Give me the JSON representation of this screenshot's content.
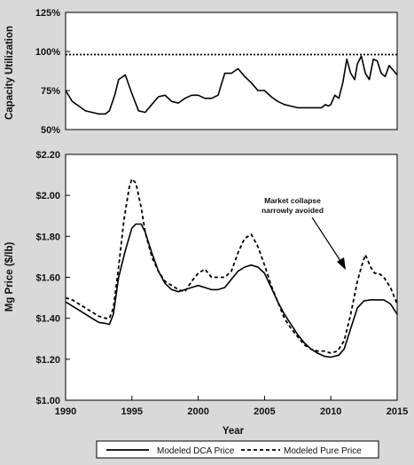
{
  "chart_data": [
    {
      "type": "line",
      "ylabel": "Capacity Utilization",
      "xlim": [
        1990,
        2015
      ],
      "ylim": [
        50,
        125
      ],
      "yticks": [
        "50%",
        "75%",
        "100%",
        "125%"
      ],
      "ytick_values": [
        50,
        75,
        100,
        125
      ],
      "grid": false,
      "series": [
        {
          "line": "solid",
          "x": [
            1990,
            1990.5,
            1991,
            1991.5,
            1992,
            1992.5,
            1993,
            1993.3,
            1993.7,
            1994,
            1994.5,
            1995,
            1995.5,
            1996,
            1996.5,
            1997,
            1997.5,
            1998,
            1998.5,
            1999,
            1999.5,
            2000,
            2000.5,
            2001,
            2001.5,
            2002,
            2002.5,
            2003,
            2003.5,
            2004,
            2004.5,
            2005,
            2005.5,
            2006,
            2006.5,
            2007,
            2007.5,
            2008,
            2008.5,
            2009,
            2009.3,
            2009.6,
            2009.8,
            2010,
            2010.3,
            2010.6,
            2010.9,
            2011.2,
            2011.5,
            2011.8,
            2012,
            2012.3,
            2012.6,
            2012.9,
            2013.2,
            2013.5,
            2013.8,
            2014.1,
            2014.4,
            2014.7,
            2015
          ],
          "y": [
            75,
            68,
            65,
            62,
            61,
            60,
            60,
            62,
            72,
            82,
            85,
            73,
            62,
            61,
            66,
            71,
            72,
            68,
            67,
            70,
            72,
            72,
            70,
            70,
            72,
            86,
            86,
            89,
            84,
            80,
            75,
            75,
            71,
            68,
            66,
            65,
            64,
            64,
            64,
            64,
            64,
            66,
            65,
            66,
            72,
            70,
            80,
            95,
            86,
            82,
            92,
            97,
            86,
            82,
            95,
            94,
            86,
            84,
            91,
            88,
            85
          ]
        },
        {
          "line": "dashed",
          "x": [
            1990,
            2015
          ],
          "y": [
            98,
            98
          ]
        }
      ]
    },
    {
      "type": "line",
      "xlabel": "Year",
      "ylabel": "Mg Price ($/lb)",
      "xlim": [
        1990,
        2015
      ],
      "ylim": [
        1.0,
        2.2
      ],
      "xticks": [
        "1990",
        "1995",
        "2000",
        "2005",
        "2010",
        "2015"
      ],
      "xtick_values": [
        1990,
        1995,
        2000,
        2005,
        2010,
        2015
      ],
      "yticks": [
        "$1.00",
        "$1.20",
        "$1.40",
        "$1.60",
        "$1.80",
        "$2.00",
        "$2.20"
      ],
      "ytick_values": [
        1.0,
        1.2,
        1.4,
        1.6,
        1.8,
        2.0,
        2.2
      ],
      "grid": false,
      "annotation": [
        "Market collapse",
        "narrowly avoided"
      ],
      "legend_position": "bottom",
      "series": [
        {
          "name": "Modeled DCA Price",
          "line": "solid",
          "x": [
            1990,
            1990.5,
            1991,
            1991.5,
            1992,
            1992.5,
            1993,
            1993.3,
            1993.6,
            1994,
            1994.5,
            1995,
            1995.3,
            1995.7,
            1996,
            1996.5,
            1997,
            1997.5,
            1998,
            1998.5,
            1999,
            1999.5,
            2000,
            2000.5,
            2001,
            2001.5,
            2002,
            2002.5,
            2003,
            2003.5,
            2004,
            2004.5,
            2005,
            2005.5,
            2006,
            2006.5,
            2007,
            2007.5,
            2008,
            2008.5,
            2009,
            2009.5,
            2010,
            2010.3,
            2010.6,
            2011,
            2011.5,
            2012,
            2012.5,
            2013,
            2013.5,
            2014,
            2014.5,
            2015
          ],
          "y": [
            1.48,
            1.46,
            1.44,
            1.42,
            1.4,
            1.38,
            1.375,
            1.37,
            1.42,
            1.6,
            1.73,
            1.84,
            1.86,
            1.86,
            1.82,
            1.72,
            1.63,
            1.57,
            1.54,
            1.53,
            1.54,
            1.55,
            1.56,
            1.55,
            1.54,
            1.54,
            1.55,
            1.59,
            1.63,
            1.65,
            1.66,
            1.65,
            1.62,
            1.55,
            1.48,
            1.42,
            1.37,
            1.32,
            1.28,
            1.25,
            1.23,
            1.215,
            1.21,
            1.215,
            1.22,
            1.25,
            1.35,
            1.45,
            1.485,
            1.49,
            1.49,
            1.49,
            1.47,
            1.42
          ]
        },
        {
          "name": "Modeled Pure Price",
          "line": "dashed",
          "x": [
            1990,
            1990.5,
            1991,
            1991.5,
            1992,
            1992.5,
            1993,
            1993.3,
            1993.6,
            1994,
            1994.4,
            1994.8,
            1995,
            1995.3,
            1995.7,
            1996,
            1996.5,
            1997,
            1997.5,
            1998,
            1998.5,
            1999,
            1999.5,
            2000,
            2000.5,
            2001,
            2001.5,
            2002,
            2002.5,
            2003,
            2003.5,
            2004,
            2004.5,
            2005,
            2005.5,
            2006,
            2006.5,
            2007,
            2007.5,
            2008,
            2008.5,
            2009,
            2009.5,
            2010,
            2010.5,
            2011,
            2011.5,
            2012,
            2012.3,
            2012.6,
            2013,
            2013.3,
            2013.6,
            2014,
            2014.5,
            2015
          ],
          "y": [
            1.5,
            1.49,
            1.47,
            1.45,
            1.43,
            1.41,
            1.4,
            1.4,
            1.45,
            1.65,
            1.88,
            2.04,
            2.08,
            2.06,
            1.94,
            1.82,
            1.7,
            1.63,
            1.58,
            1.56,
            1.54,
            1.53,
            1.58,
            1.62,
            1.64,
            1.6,
            1.6,
            1.6,
            1.63,
            1.72,
            1.79,
            1.81,
            1.75,
            1.66,
            1.56,
            1.48,
            1.4,
            1.35,
            1.31,
            1.27,
            1.25,
            1.24,
            1.24,
            1.23,
            1.24,
            1.29,
            1.42,
            1.58,
            1.65,
            1.71,
            1.65,
            1.62,
            1.62,
            1.6,
            1.55,
            1.47
          ]
        }
      ]
    }
  ]
}
